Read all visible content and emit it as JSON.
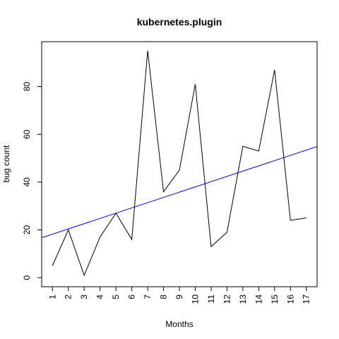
{
  "chart_data": {
    "type": "line",
    "title": "kubernetes.plugin",
    "xlabel": "Months",
    "ylabel": "bug count",
    "x": [
      1,
      2,
      3,
      4,
      5,
      6,
      7,
      8,
      9,
      10,
      11,
      12,
      13,
      14,
      15,
      16,
      17
    ],
    "x_tick_labels": [
      "1",
      "2",
      "3",
      "4",
      "5",
      "6",
      "7",
      "8",
      "9",
      "10",
      "11",
      "12",
      "13",
      "14",
      "15",
      "16",
      "17"
    ],
    "y_ticks": [
      0,
      20,
      40,
      60,
      80
    ],
    "y_tick_labels": [
      "0",
      "20",
      "40",
      "60",
      "80"
    ],
    "xlim": [
      0.32,
      17.68
    ],
    "ylim": [
      -3.8,
      98.8
    ],
    "grid": false,
    "series": [
      {
        "values": [
          5,
          20,
          1,
          17,
          27,
          16,
          95,
          36,
          45,
          81,
          13,
          19,
          55,
          53,
          87,
          24,
          25
        ],
        "color": "#000000"
      }
    ],
    "trendline": {
      "intercept": 16.0,
      "slope": 2.2,
      "color": "#0000ff"
    }
  }
}
